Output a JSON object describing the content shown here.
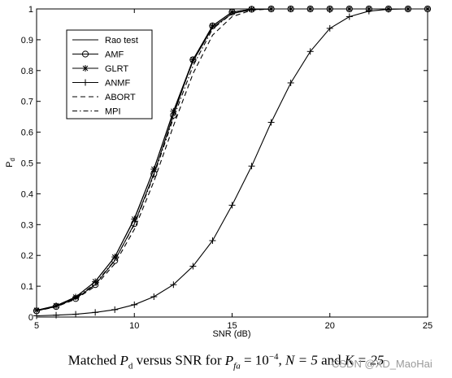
{
  "chart_data": {
    "type": "line",
    "xlabel": "SNR (dB)",
    "ylabel": "P",
    "ylabel_sub": "d",
    "xlim": [
      5,
      25
    ],
    "ylim": [
      0,
      1
    ],
    "xticks": [
      5,
      10,
      15,
      20,
      25
    ],
    "yticks": [
      0,
      0.1,
      0.2,
      0.3,
      0.4,
      0.5,
      0.6,
      0.7,
      0.8,
      0.9,
      1
    ],
    "grid": false,
    "legend_position": "top-left",
    "series": [
      {
        "name": "Rao test",
        "style": "solid",
        "marker": "none",
        "x": [
          5,
          6,
          7,
          8,
          9,
          10,
          11,
          12,
          13,
          14,
          15,
          16,
          17,
          18,
          19,
          20,
          21,
          22,
          23,
          24,
          25
        ],
        "y": [
          0.022,
          0.036,
          0.065,
          0.115,
          0.195,
          0.32,
          0.48,
          0.665,
          0.83,
          0.94,
          0.985,
          0.998,
          1,
          1,
          1,
          1,
          1,
          1,
          1,
          1,
          1
        ]
      },
      {
        "name": "AMF",
        "style": "solid",
        "marker": "circle",
        "x": [
          5,
          6,
          7,
          8,
          9,
          10,
          11,
          12,
          13,
          14,
          15,
          16,
          17,
          18,
          19,
          20,
          21,
          22,
          23,
          24,
          25
        ],
        "y": [
          0.02,
          0.034,
          0.06,
          0.105,
          0.183,
          0.303,
          0.465,
          0.655,
          0.835,
          0.945,
          0.99,
          0.999,
          1,
          1,
          1,
          1,
          1,
          1,
          1,
          1,
          1
        ]
      },
      {
        "name": "GLRT",
        "style": "solid",
        "marker": "star",
        "x": [
          5,
          6,
          7,
          8,
          9,
          10,
          11,
          12,
          13,
          14,
          15,
          16,
          17,
          18,
          19,
          20,
          21,
          22,
          23,
          24,
          25
        ],
        "y": [
          0.022,
          0.037,
          0.065,
          0.115,
          0.195,
          0.318,
          0.48,
          0.668,
          0.835,
          0.945,
          0.99,
          0.999,
          1,
          1,
          1,
          1,
          1,
          1,
          1,
          1,
          1
        ]
      },
      {
        "name": "ANMF",
        "style": "solid",
        "marker": "plus",
        "x": [
          5,
          6,
          7,
          8,
          9,
          10,
          11,
          12,
          13,
          14,
          15,
          16,
          17,
          18,
          19,
          20,
          21,
          22,
          23,
          24,
          25
        ],
        "y": [
          0.004,
          0.006,
          0.009,
          0.015,
          0.024,
          0.04,
          0.066,
          0.105,
          0.165,
          0.248,
          0.363,
          0.49,
          0.632,
          0.76,
          0.862,
          0.937,
          0.975,
          0.993,
          0.999,
          1,
          1
        ]
      },
      {
        "name": "ABORT",
        "style": "dashed",
        "marker": "none",
        "x": [
          5,
          6,
          7,
          8,
          9,
          10,
          11,
          12,
          13,
          14,
          15,
          16,
          17,
          18,
          19,
          20,
          21,
          22,
          23,
          24,
          25
        ],
        "y": [
          0.02,
          0.033,
          0.058,
          0.1,
          0.173,
          0.285,
          0.44,
          0.62,
          0.79,
          0.915,
          0.975,
          0.996,
          1,
          1,
          1,
          1,
          1,
          1,
          1,
          1,
          1
        ]
      },
      {
        "name": "MPI",
        "style": "dashdot",
        "marker": "none",
        "x": [
          5,
          6,
          7,
          8,
          9,
          10,
          11,
          12,
          13,
          14,
          15,
          16,
          17,
          18,
          19,
          20,
          21,
          22,
          23,
          24,
          25
        ],
        "y": [
          0.021,
          0.035,
          0.062,
          0.108,
          0.185,
          0.3,
          0.46,
          0.645,
          0.815,
          0.935,
          0.985,
          0.998,
          1,
          1,
          1,
          1,
          1,
          1,
          1,
          1,
          1
        ]
      }
    ]
  },
  "caption": {
    "prefix": "Matched",
    "pd_main": "P",
    "pd_sub": "d",
    "mid": "versus SNR for",
    "pfa_main": "P",
    "pfa_sub": "fa",
    "pfa_eq": " = 10",
    "pfa_exp": "−4",
    "n_part": "N = 5",
    "k_joiner": "and",
    "k_part": "K = 25"
  },
  "watermark": "CSDN @XD_MaoHai"
}
